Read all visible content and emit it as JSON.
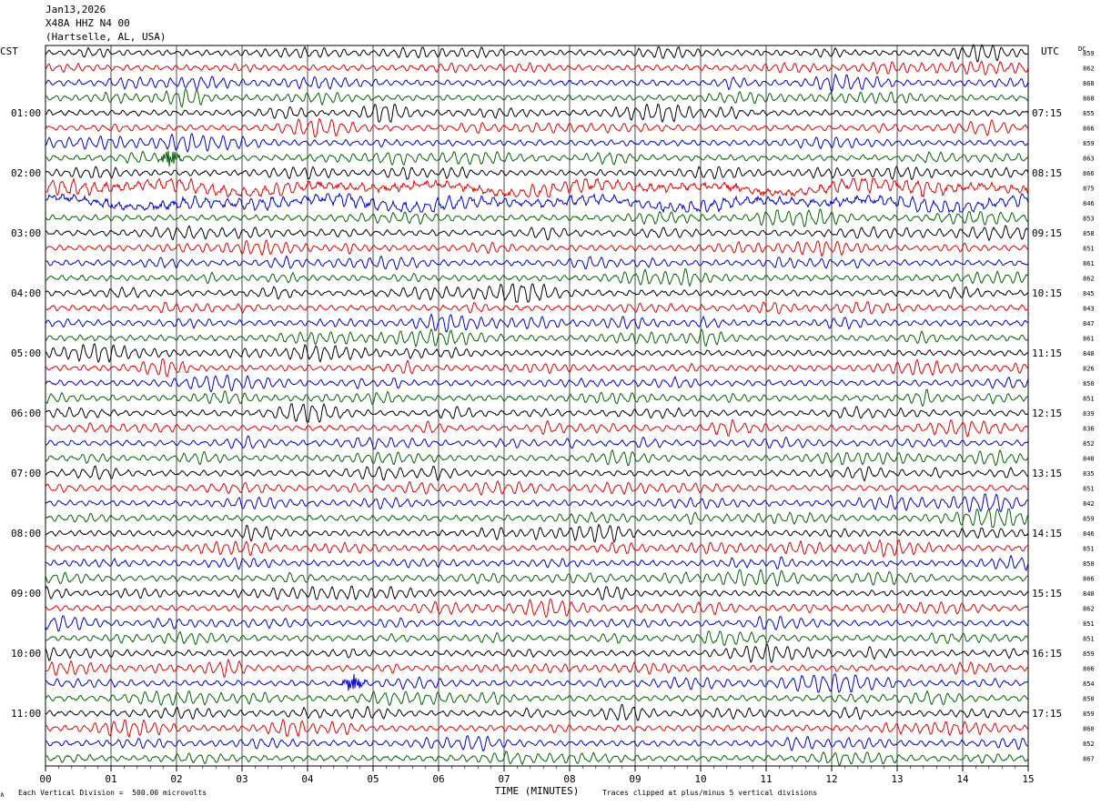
{
  "header": {
    "date": "Jan13,2026",
    "station": "X48A HHZ N4 00",
    "location": "(Hartselle, AL, USA)"
  },
  "labels": {
    "left_tz": "CST",
    "right_tz": "UTC",
    "dc_header": "DC"
  },
  "footer": {
    "scale_note": "Each Vertical Division =  500.00 microvolts",
    "clip_note": "Traces clipped at plus/minus 5 vertical divisions",
    "corner_mark": "∧"
  },
  "chart_data": {
    "type": "line",
    "title": "",
    "xlabel": "TIME (MINUTES)",
    "xlim": [
      0,
      15
    ],
    "x_ticks": [
      "00",
      "01",
      "02",
      "03",
      "04",
      "05",
      "06",
      "07",
      "08",
      "09",
      "10",
      "11",
      "12",
      "13",
      "14",
      "15"
    ],
    "trace_colors": [
      "#000000",
      "#e00000",
      "#0000cc",
      "#006400"
    ],
    "row_count": 48,
    "row_minutes": 15,
    "left_time_labels": [
      {
        "row": 4,
        "text": "01:00"
      },
      {
        "row": 8,
        "text": "02:00"
      },
      {
        "row": 12,
        "text": "03:00"
      },
      {
        "row": 16,
        "text": "04:00"
      },
      {
        "row": 20,
        "text": "05:00"
      },
      {
        "row": 24,
        "text": "06:00"
      },
      {
        "row": 28,
        "text": "07:00"
      },
      {
        "row": 32,
        "text": "08:00"
      },
      {
        "row": 36,
        "text": "09:00"
      },
      {
        "row": 40,
        "text": "10:00"
      },
      {
        "row": 44,
        "text": "11:00"
      }
    ],
    "right_time_labels": [
      {
        "row": 4,
        "text": "07:15"
      },
      {
        "row": 8,
        "text": "08:15"
      },
      {
        "row": 12,
        "text": "09:15"
      },
      {
        "row": 16,
        "text": "10:15"
      },
      {
        "row": 20,
        "text": "11:15"
      },
      {
        "row": 24,
        "text": "12:15"
      },
      {
        "row": 28,
        "text": "13:15"
      },
      {
        "row": 32,
        "text": "14:15"
      },
      {
        "row": 36,
        "text": "15:15"
      },
      {
        "row": 40,
        "text": "16:15"
      },
      {
        "row": 44,
        "text": "17:15"
      }
    ],
    "dc_offsets": [
      "859",
      "862",
      "868",
      "868",
      "855",
      "866",
      "859",
      "863",
      "866",
      "875",
      "846",
      "853",
      "858",
      "851",
      "861",
      "862",
      "845",
      "843",
      "847",
      "861",
      "848",
      "826",
      "850",
      "851",
      "839",
      "836",
      "852",
      "848",
      "835",
      "851",
      "842",
      "859",
      "846",
      "851",
      "850",
      "866",
      "840",
      "862",
      "851",
      "851",
      "859",
      "866",
      "854",
      "850",
      "859",
      "860",
      "852",
      "867"
    ],
    "events": [
      {
        "row": 7,
        "minute": 1.9,
        "description_color": "#006400"
      },
      {
        "row": 42,
        "minute": 4.7,
        "description_color": "#0000cc"
      }
    ]
  }
}
